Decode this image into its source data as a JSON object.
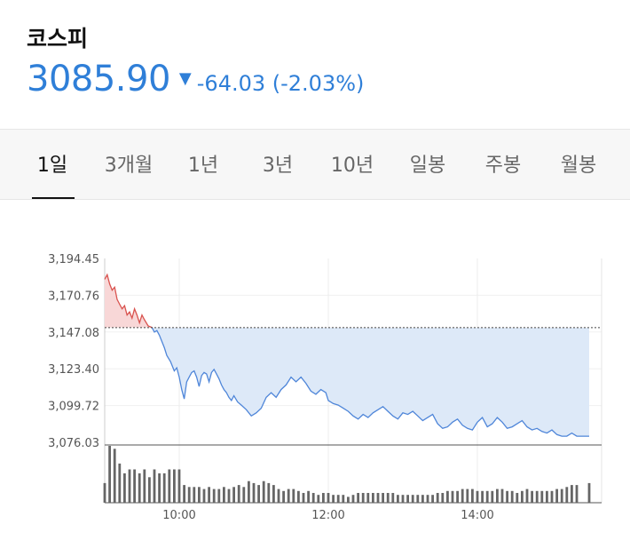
{
  "header": {
    "title": "코스피",
    "price": "3085.90",
    "change": "-64.03 (-2.03%)",
    "direction_icon": "triangle-down-icon"
  },
  "tabs": [
    {
      "label": "1일",
      "active": true
    },
    {
      "label": "3개월",
      "active": false
    },
    {
      "label": "1년",
      "active": false
    },
    {
      "label": "3년",
      "active": false
    },
    {
      "label": "10년",
      "active": false
    },
    {
      "label": "일봉",
      "active": false
    },
    {
      "label": "주봉",
      "active": false
    },
    {
      "label": "월봉",
      "active": false
    }
  ],
  "colors": {
    "accent": "#2f7fd8",
    "up_line": "#d9534f",
    "up_fill": "#f8d7d7",
    "down_line": "#4f86d9",
    "down_fill": "#dde9f8",
    "volume": "#666666"
  },
  "chart_data": {
    "type": "area",
    "title": "",
    "xlabel": "",
    "ylabel": "",
    "ylim": [
      3076.03,
      3194.45
    ],
    "yticks": [
      "3,194.45",
      "3,170.76",
      "3,147.08",
      "3,123.40",
      "3,099.72",
      "3,076.03"
    ],
    "xticks": [
      {
        "label": "10:00",
        "t": "10:00"
      },
      {
        "label": "12:00",
        "t": "12:00"
      },
      {
        "label": "14:00",
        "t": "14:00"
      }
    ],
    "xrange": [
      "09:00",
      "15:40"
    ],
    "reference": 3149.93,
    "grid": true,
    "series": [
      {
        "t": [
          "09:00",
          "09:02",
          "09:04",
          "09:06",
          "09:08",
          "09:10",
          "09:12",
          "09:14",
          "09:16",
          "09:18",
          "09:20",
          "09:22",
          "09:24",
          "09:26",
          "09:28",
          "09:30",
          "09:32",
          "09:35",
          "09:38",
          "09:40",
          "09:42",
          "09:44",
          "09:46",
          "09:48",
          "09:50",
          "09:53",
          "09:56",
          "09:58",
          "10:00",
          "10:02",
          "10:04",
          "10:06",
          "10:08",
          "10:10",
          "10:12",
          "10:14",
          "10:16",
          "10:18",
          "10:20",
          "10:22",
          "10:24",
          "10:26",
          "10:28",
          "10:30",
          "10:32",
          "10:34",
          "10:36",
          "10:38",
          "10:40",
          "10:42",
          "10:44",
          "10:47",
          "10:50",
          "10:54",
          "10:58",
          "11:02",
          "11:06",
          "11:10",
          "11:14",
          "11:18",
          "11:22",
          "11:26",
          "11:30",
          "11:34",
          "11:38",
          "11:42",
          "11:46",
          "11:50",
          "11:54",
          "11:58",
          "12:00",
          "12:04",
          "12:08",
          "12:12",
          "12:16",
          "12:20",
          "12:24",
          "12:28",
          "12:32",
          "12:36",
          "12:40",
          "12:44",
          "12:48",
          "12:52",
          "12:56",
          "13:00",
          "13:04",
          "13:08",
          "13:12",
          "13:16",
          "13:20",
          "13:24",
          "13:28",
          "13:32",
          "13:36",
          "13:40",
          "13:44",
          "13:48",
          "13:52",
          "13:56",
          "14:00",
          "14:04",
          "14:08",
          "14:12",
          "14:16",
          "14:20",
          "14:24",
          "14:28",
          "14:32",
          "14:36",
          "14:40",
          "14:44",
          "14:48",
          "14:52",
          "14:56",
          "15:00",
          "15:04",
          "15:08",
          "15:12",
          "15:16",
          "15:20",
          "15:24",
          "15:30"
        ],
        "values": [
          3181,
          3184,
          3178,
          3174,
          3176,
          3168,
          3165,
          3162,
          3164,
          3158,
          3160,
          3156,
          3162,
          3158,
          3153,
          3158,
          3155,
          3151,
          3150,
          3147,
          3148,
          3145,
          3141,
          3137,
          3132,
          3128,
          3122,
          3124,
          3118,
          3110,
          3104,
          3115,
          3118,
          3121,
          3122,
          3118,
          3112,
          3119,
          3121,
          3120,
          3115,
          3121,
          3123,
          3120,
          3117,
          3113,
          3110,
          3108,
          3105,
          3103,
          3106,
          3102,
          3100,
          3097,
          3093,
          3095,
          3098,
          3105,
          3108,
          3105,
          3110,
          3113,
          3118,
          3115,
          3118,
          3114,
          3109,
          3107,
          3110,
          3108,
          3103,
          3101,
          3100,
          3098,
          3096,
          3093,
          3091,
          3094,
          3092,
          3095,
          3097,
          3099,
          3096,
          3093,
          3091,
          3095,
          3094,
          3096,
          3093,
          3090,
          3092,
          3094,
          3088,
          3085,
          3086,
          3089,
          3091,
          3087,
          3085,
          3084,
          3089,
          3092,
          3086,
          3088,
          3092,
          3089,
          3085,
          3086,
          3088,
          3090,
          3086,
          3084,
          3085,
          3083,
          3082,
          3084,
          3081,
          3080,
          3080,
          3082,
          3080,
          3080,
          3080
        ]
      }
    ],
    "volume": {
      "t": [
        "09:00",
        "09:04",
        "09:08",
        "09:12",
        "09:16",
        "09:20",
        "09:24",
        "09:28",
        "09:32",
        "09:36",
        "09:40",
        "09:44",
        "09:48",
        "09:52",
        "09:56",
        "10:00",
        "10:04",
        "10:08",
        "10:12",
        "10:16",
        "10:20",
        "10:24",
        "10:28",
        "10:32",
        "10:36",
        "10:40",
        "10:44",
        "10:48",
        "10:52",
        "10:56",
        "11:00",
        "11:04",
        "11:08",
        "11:12",
        "11:16",
        "11:20",
        "11:24",
        "11:28",
        "11:32",
        "11:36",
        "11:40",
        "11:44",
        "11:48",
        "11:52",
        "11:56",
        "12:00",
        "12:04",
        "12:08",
        "12:12",
        "12:16",
        "12:20",
        "12:24",
        "12:28",
        "12:32",
        "12:36",
        "12:40",
        "12:44",
        "12:48",
        "12:52",
        "12:56",
        "13:00",
        "13:04",
        "13:08",
        "13:12",
        "13:16",
        "13:20",
        "13:24",
        "13:28",
        "13:32",
        "13:36",
        "13:40",
        "13:44",
        "13:48",
        "13:52",
        "13:56",
        "14:00",
        "14:04",
        "14:08",
        "14:12",
        "14:16",
        "14:20",
        "14:24",
        "14:28",
        "14:32",
        "14:36",
        "14:40",
        "14:44",
        "14:48",
        "14:52",
        "14:56",
        "15:00",
        "15:04",
        "15:08",
        "15:12",
        "15:16",
        "15:20",
        "15:30"
      ],
      "values": [
        20,
        58,
        55,
        40,
        30,
        34,
        34,
        30,
        34,
        26,
        34,
        30,
        30,
        34,
        34,
        34,
        18,
        16,
        16,
        16,
        14,
        16,
        14,
        14,
        16,
        14,
        16,
        18,
        16,
        22,
        20,
        18,
        22,
        20,
        18,
        14,
        12,
        14,
        14,
        12,
        10,
        12,
        10,
        8,
        10,
        10,
        8,
        8,
        8,
        6,
        8,
        10,
        10,
        10,
        10,
        10,
        10,
        10,
        10,
        8,
        8,
        8,
        8,
        8,
        8,
        8,
        8,
        10,
        10,
        12,
        12,
        12,
        14,
        14,
        14,
        12,
        12,
        12,
        12,
        14,
        14,
        12,
        12,
        10,
        12,
        14,
        12,
        12,
        12,
        12,
        12,
        14,
        14,
        16,
        18,
        18,
        20
      ]
    }
  }
}
